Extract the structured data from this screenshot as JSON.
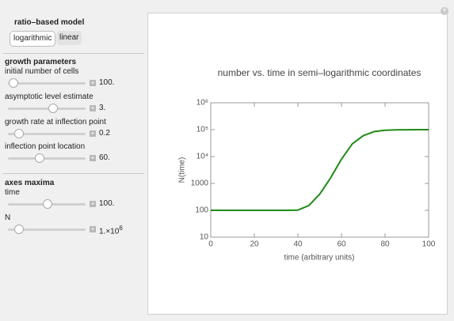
{
  "model": {
    "label": "ratio–based model",
    "options": [
      "logarithmic",
      "linear"
    ]
  },
  "growth": {
    "heading": "growth parameters",
    "params": [
      {
        "label": "initial number of cells",
        "value": "100."
      },
      {
        "label": "asymptotic level estimate",
        "value": "3."
      },
      {
        "label": "growth rate at inflection point",
        "value": "0.2"
      },
      {
        "label": "inflection point location",
        "value": "60."
      }
    ]
  },
  "axes": {
    "heading": "axes maxima",
    "params": [
      {
        "label": "time",
        "value": "100."
      },
      {
        "label": "N",
        "value": "1.×10",
        "exponent": "6"
      }
    ]
  },
  "chart_data": {
    "type": "line",
    "title": "number vs. time in semi–logarithmic coordinates",
    "x_label": "time (arbitrary units)",
    "y_label": "N(time)",
    "x": [
      0,
      5,
      10,
      15,
      20,
      25,
      30,
      35,
      40,
      45,
      50,
      55,
      60,
      65,
      70,
      75,
      80,
      85,
      90,
      95,
      100
    ],
    "series": [
      {
        "name": "N(time)",
        "color": "#1e8a14",
        "values": [
          100,
          100,
          100,
          100,
          100,
          100,
          100,
          100,
          102,
          150,
          400,
          1600,
          8000,
          30000,
          60000,
          85000,
          95000,
          98000,
          99500,
          99800,
          100000
        ]
      }
    ],
    "xlim": [
      0,
      100
    ],
    "xticks": [
      0,
      20,
      40,
      60,
      80,
      100
    ],
    "ylim": [
      10,
      1000000
    ],
    "log_y": true,
    "yticks": [
      10,
      100,
      1000,
      {
        "value": 10000,
        "label": "10⁴"
      },
      {
        "value": 100000,
        "label": "10⁵"
      },
      {
        "value": 1000000,
        "label": "10⁶"
      }
    ]
  }
}
